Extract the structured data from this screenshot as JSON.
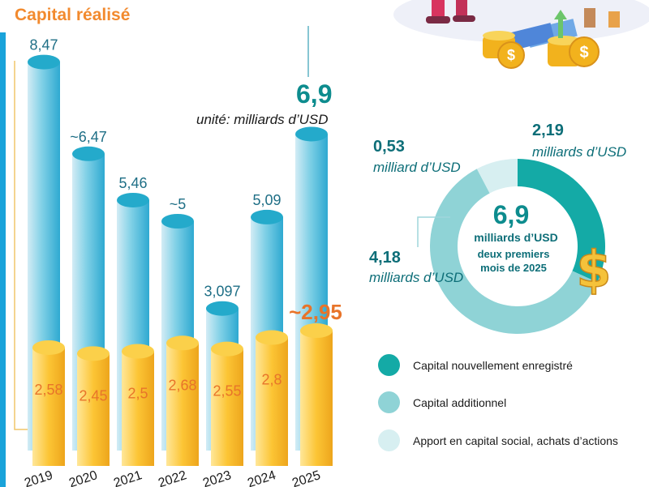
{
  "title": "Capital réalisé",
  "chart_data": [
    {
      "type": "bar",
      "categories": [
        "2019",
        "2020",
        "2021",
        "2022",
        "2023",
        "2024",
        "2025"
      ],
      "series": [
        {
          "values": [
            8.47,
            6.47,
            5.46,
            5.0,
            3.097,
            5.09,
            6.9
          ],
          "labels": [
            "8,47",
            "~6,47",
            "5,46",
            "~5",
            "3,097",
            "5,09",
            "6,9"
          ]
        },
        {
          "values": [
            2.58,
            2.45,
            2.5,
            2.68,
            2.55,
            2.8,
            2.95
          ],
          "labels": [
            "2,58",
            "2,45",
            "2,5",
            "2,68",
            "2,55",
            "2,8",
            "~2,95"
          ]
        }
      ],
      "total_label": "6,9",
      "unit": "unité: milliards d’USD",
      "colors": {
        "blue": "#45b8d8",
        "yellow": "#f7bb22",
        "blue_label": "#1f6f86",
        "yellow_label": "#e8742a"
      }
    },
    {
      "type": "pie",
      "segments": [
        {
          "name": "Capital nouvellement enregistré",
          "value": 2.19,
          "value_label": "2,19",
          "unit_label": "milliards d’USD",
          "color": "#14aaa6"
        },
        {
          "name": "Capital additionnel",
          "value": 4.18,
          "value_label": "4,18",
          "unit_label": "milliards d’USD",
          "color": "#8fd3d6"
        },
        {
          "name": "Apport en capital social, achats d’actions",
          "value": 0.53,
          "value_label": "0,53",
          "unit_label": "milliard d’USD",
          "color": "#d7eff1"
        }
      ],
      "center": {
        "value": "6,9",
        "unit": "milliards d’USD",
        "note": "deux premiers mois de 2025"
      }
    }
  ],
  "legend": {
    "new": "Capital nouvellement enregistré",
    "additional": "Capital additionnel",
    "equity": "Apport en capital social, achats d’actions"
  },
  "icons": [
    "dollar-coin-stack-illustration",
    "dollar-coin-icon"
  ]
}
